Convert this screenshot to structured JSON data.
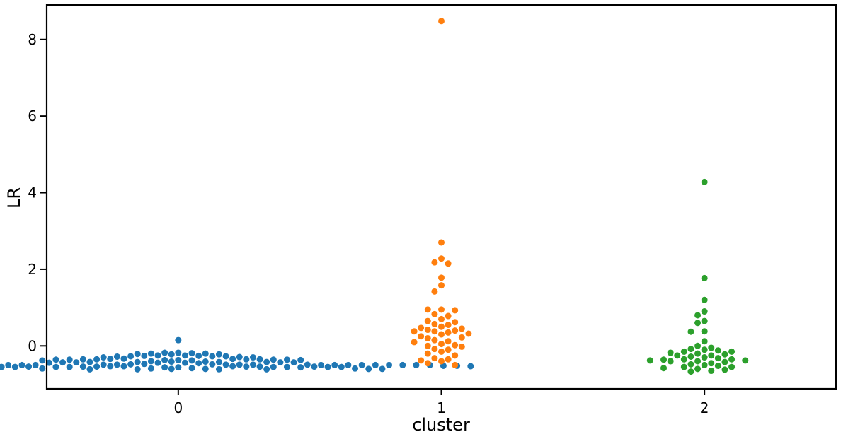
{
  "chart_data": {
    "type": "scatter",
    "subtype": "swarm",
    "title": "",
    "xlabel": "cluster",
    "ylabel": "LR",
    "categories": [
      "0",
      "1",
      "2"
    ],
    "xlim": [
      -0.5,
      2.5
    ],
    "ylim": [
      -1.12,
      8.9
    ],
    "yticks": [
      0,
      2,
      4,
      6,
      8
    ],
    "grid": false,
    "legend": "none",
    "series": [
      {
        "category": "0",
        "color": "#1f77b4",
        "values": [
          0.15,
          -0.2,
          -0.18,
          -0.18,
          -0.19,
          -0.2,
          -0.22,
          -0.21,
          -0.22,
          -0.25,
          -0.26,
          -0.27,
          -0.28,
          -0.3,
          -0.3,
          -0.29,
          -0.27,
          -0.26,
          -0.25,
          -0.27,
          -0.33,
          -0.34,
          -0.35,
          -0.36,
          -0.37,
          -0.38,
          -0.38,
          -0.37,
          -0.36,
          -0.35,
          -0.34,
          -0.35,
          -0.36,
          -0.37,
          -0.36,
          -0.35,
          -0.4,
          -0.41,
          -0.42,
          -0.43,
          -0.44,
          -0.45,
          -0.44,
          -0.43,
          -0.42,
          -0.41,
          -0.42,
          -0.43,
          -0.44,
          -0.43,
          -0.42,
          -0.47,
          -0.48,
          -0.49,
          -0.5,
          -0.5,
          -0.5,
          -0.49,
          -0.48,
          -0.49,
          -0.5,
          -0.5,
          -0.49,
          -0.5,
          -0.49,
          -0.5,
          -0.5,
          -0.5,
          -0.49,
          -0.5,
          -0.5,
          -0.5,
          -0.5,
          -0.5,
          -0.5,
          -0.5,
          -0.5,
          -0.5,
          -0.5,
          -0.53,
          -0.54,
          -0.55,
          -0.55,
          -0.56,
          -0.56,
          -0.55,
          -0.55,
          -0.54,
          -0.53,
          -0.54,
          -0.55,
          -0.55,
          -0.56,
          -0.55,
          -0.54,
          -0.53,
          -0.54,
          -0.55,
          -0.54,
          -0.53,
          -0.53,
          -0.52,
          -0.52,
          -0.52,
          -0.58,
          -0.59,
          -0.6,
          -0.6,
          -0.61,
          -0.61,
          -0.6,
          -0.6,
          -0.59,
          -0.6,
          -0.61,
          -0.61,
          -0.6,
          -0.59,
          -0.6
        ]
      },
      {
        "category": "1",
        "color": "#ff7f0e",
        "values": [
          8.48,
          2.7,
          2.28,
          2.15,
          2.18,
          1.78,
          1.58,
          1.42,
          0.95,
          0.93,
          0.95,
          0.83,
          0.78,
          0.7,
          0.65,
          0.62,
          0.57,
          0.55,
          0.5,
          0.47,
          0.45,
          0.42,
          0.4,
          0.38,
          0.38,
          0.35,
          0.32,
          0.3,
          0.25,
          0.22,
          0.2,
          0.15,
          0.12,
          0.1,
          0.05,
          0.02,
          0.0,
          -0.02,
          -0.08,
          -0.1,
          -0.15,
          -0.2,
          -0.25,
          -0.32,
          -0.35,
          -0.38,
          -0.4,
          -0.45,
          -0.5
        ]
      },
      {
        "category": "2",
        "color": "#2ca02c",
        "values": [
          4.28,
          1.77,
          1.2,
          0.9,
          0.8,
          0.65,
          0.6,
          0.38,
          0.37,
          0.12,
          0.0,
          -0.05,
          -0.08,
          -0.1,
          -0.12,
          -0.15,
          -0.15,
          -0.18,
          -0.2,
          -0.22,
          -0.25,
          -0.25,
          -0.28,
          -0.3,
          -0.32,
          -0.35,
          -0.35,
          -0.36,
          -0.38,
          -0.38,
          -0.4,
          -0.4,
          -0.42,
          -0.45,
          -0.48,
          -0.5,
          -0.52,
          -0.55,
          -0.55,
          -0.58,
          -0.6,
          -0.62,
          -0.65,
          -0.67
        ]
      }
    ]
  }
}
